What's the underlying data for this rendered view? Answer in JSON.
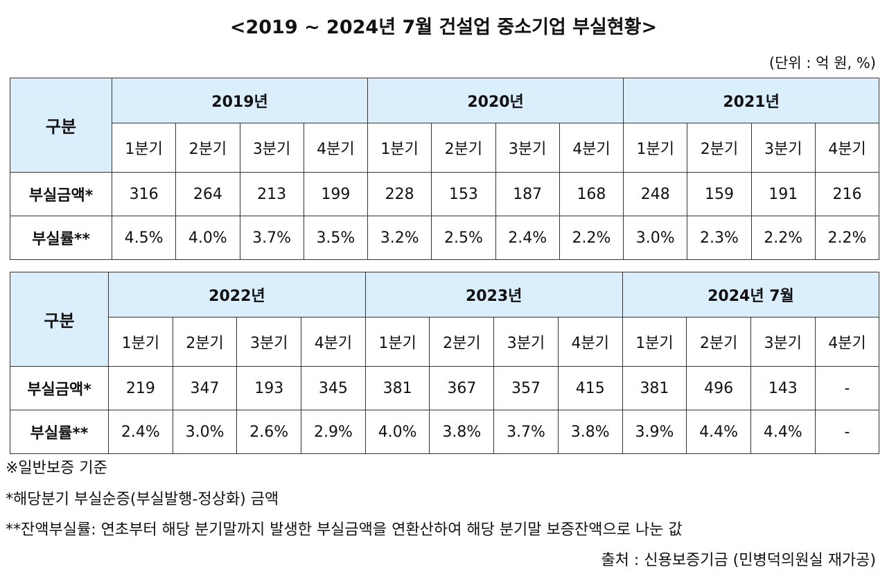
{
  "title": "<2019 ~ 2024년 7월 건설업 중소기업 부실현황>",
  "unit": "(단위 : 억 원, %)",
  "tables": [
    {
      "row_header": "구분",
      "years": [
        "2019년",
        "2020년",
        "2021년"
      ],
      "quarters": [
        "1분기",
        "2분기",
        "3분기",
        "4분기",
        "1분기",
        "2분기",
        "3분기",
        "4분기",
        "1분기",
        "2분기",
        "3분기",
        "4분기"
      ],
      "rows": [
        {
          "label": "부실금액*",
          "values": [
            "316",
            "264",
            "213",
            "199",
            "228",
            "153",
            "187",
            "168",
            "248",
            "159",
            "191",
            "216"
          ]
        },
        {
          "label": "부실률**",
          "values": [
            "4.5%",
            "4.0%",
            "3.7%",
            "3.5%",
            "3.2%",
            "2.5%",
            "2.4%",
            "2.2%",
            "3.0%",
            "2.3%",
            "2.2%",
            "2.2%"
          ]
        }
      ]
    },
    {
      "row_header": "구분",
      "years": [
        "2022년",
        "2023년",
        "2024년 7월"
      ],
      "quarters": [
        "1분기",
        "2분기",
        "3분기",
        "4분기",
        "1분기",
        "2분기",
        "3분기",
        "4분기",
        "1분기",
        "2분기",
        "3분기",
        "4분기"
      ],
      "rows": [
        {
          "label": "부실금액*",
          "values": [
            "219",
            "347",
            "193",
            "345",
            "381",
            "367",
            "357",
            "415",
            "381",
            "496",
            "143",
            "-"
          ]
        },
        {
          "label": "부실률**",
          "values": [
            "2.4%",
            "3.0%",
            "2.6%",
            "2.9%",
            "4.0%",
            "3.8%",
            "3.7%",
            "3.8%",
            "3.9%",
            "4.4%",
            "4.4%",
            "-"
          ]
        }
      ]
    }
  ],
  "notes": [
    "※일반보증 기준",
    "*해당분기 부실순증(부실발행-정상화) 금액",
    "**잔액부실률: 연초부터 해당 분기말까지 발생한 부실금액을 연환산하여 해당 분기말 보증잔액으로 나눈 값"
  ],
  "source": "출처 : 신용보증기금 (민병덕의원실 재가공)",
  "colors": {
    "header_bg": "#daeefb",
    "border": "#333333"
  }
}
